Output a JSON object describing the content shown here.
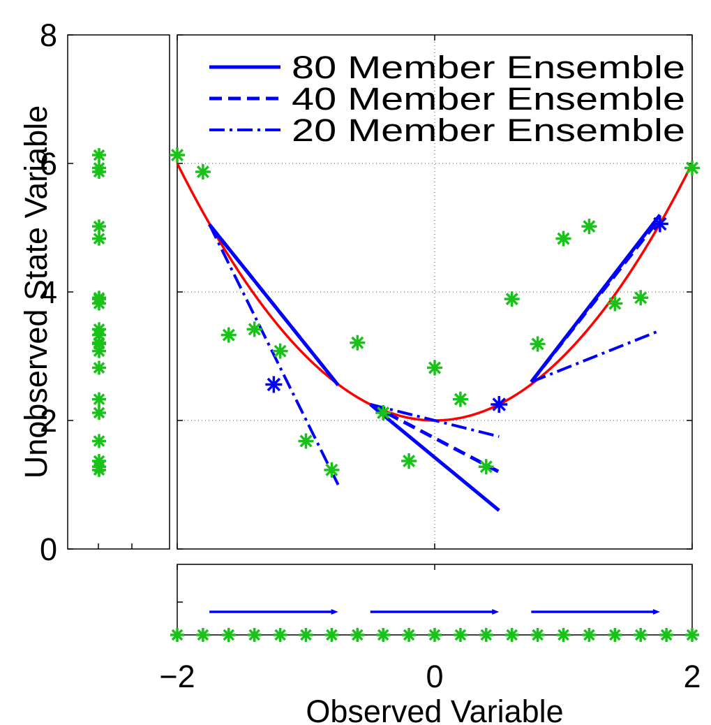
{
  "chart_data": {
    "type": "scatter",
    "xlabel": "Observed Variable",
    "ylabel": "Unobserved State Variable",
    "xlim": [
      -2,
      2
    ],
    "ylim": [
      0,
      8
    ],
    "x_ticks": [
      "−2",
      "0",
      "2"
    ],
    "y_ticks": [
      "0",
      "2",
      "4",
      "6",
      "8"
    ],
    "grid": "dotted at x = 0 and y = 2, 4, 6",
    "legend": {
      "placement": "top-right",
      "entries": [
        {
          "label": "80 Member Ensemble",
          "style": "solid"
        },
        {
          "label": "40 Member Ensemble",
          "style": "dashed"
        },
        {
          "label": "20 Member Ensemble",
          "style": "dash-dot"
        }
      ]
    },
    "colors": {
      "curve": "#ff0000",
      "ensemble": "#0000ff",
      "samples": "#19c219"
    },
    "true_relationship": {
      "formula": "y = x^2 + 2",
      "color": "#ff0000"
    },
    "sample_points": [
      {
        "x": -2.0,
        "y": 6.13
      },
      {
        "x": -1.8,
        "y": 5.87
      },
      {
        "x": -1.6,
        "y": 3.33
      },
      {
        "x": -1.4,
        "y": 3.42
      },
      {
        "x": -1.2,
        "y": 3.08
      },
      {
        "x": -1.0,
        "y": 1.68
      },
      {
        "x": -0.8,
        "y": 1.23
      },
      {
        "x": -0.6,
        "y": 3.21
      },
      {
        "x": -0.4,
        "y": 2.12
      },
      {
        "x": -0.2,
        "y": 1.37
      },
      {
        "x": 0.0,
        "y": 2.82
      },
      {
        "x": 0.2,
        "y": 2.33
      },
      {
        "x": 0.4,
        "y": 1.28
      },
      {
        "x": 0.6,
        "y": 3.89
      },
      {
        "x": 0.8,
        "y": 3.19
      },
      {
        "x": 1.0,
        "y": 4.83
      },
      {
        "x": 1.2,
        "y": 5.02
      },
      {
        "x": 1.4,
        "y": 3.82
      },
      {
        "x": 1.6,
        "y": 3.91
      },
      {
        "x": 2.0,
        "y": 5.93
      }
    ],
    "bin_centers": [
      {
        "x": -1.25,
        "y": 2.56
      },
      {
        "x": 0.5,
        "y": 2.25
      },
      {
        "x": 1.75,
        "y": 5.06
      }
    ],
    "regression_lines": {
      "80": [
        {
          "x": [
            -1.75,
            -0.75
          ],
          "y": [
            5.05,
            2.55
          ]
        },
        {
          "x": [
            -0.5,
            0.5
          ],
          "y": [
            2.25,
            0.6
          ]
        },
        {
          "x": [
            0.75,
            1.75
          ],
          "y": [
            2.6,
            5.2
          ]
        }
      ],
      "40": [
        {
          "x": [
            -1.75,
            -0.75
          ],
          "y": [
            5.05,
            2.55
          ]
        },
        {
          "x": [
            -0.5,
            0.5
          ],
          "y": [
            2.25,
            1.2
          ]
        },
        {
          "x": [
            0.75,
            1.75
          ],
          "y": [
            2.6,
            5.15
          ]
        }
      ],
      "20": [
        {
          "x": [
            -1.75,
            -0.75
          ],
          "y": [
            5.05,
            1.0
          ]
        },
        {
          "x": [
            -0.5,
            0.5
          ],
          "y": [
            2.25,
            1.75
          ]
        },
        {
          "x": [
            0.75,
            1.75
          ],
          "y": [
            2.6,
            3.4
          ]
        }
      ]
    },
    "bottom_panel": {
      "arrows": [
        {
          "x": [
            -1.75,
            -0.75
          ]
        },
        {
          "x": [
            -0.5,
            0.5
          ]
        },
        {
          "x": [
            0.75,
            1.75
          ]
        }
      ]
    }
  }
}
